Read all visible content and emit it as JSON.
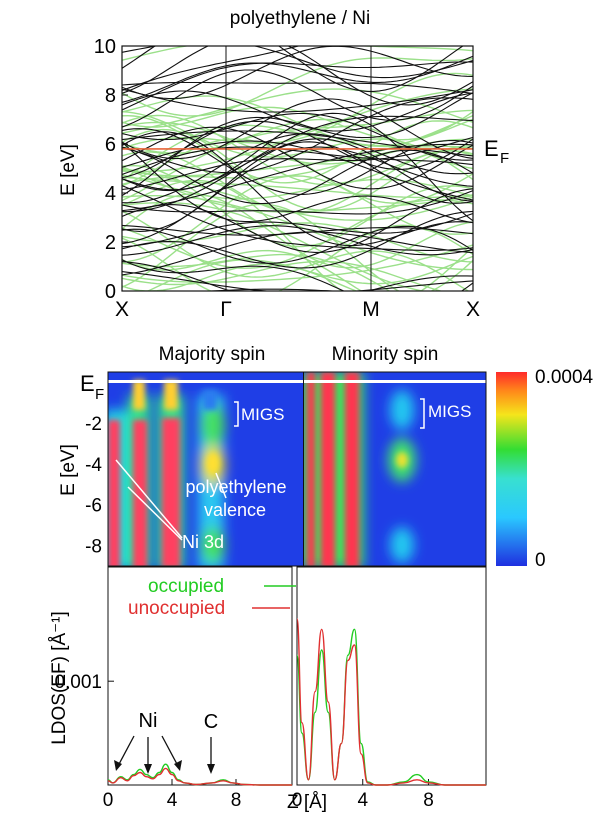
{
  "figure": {
    "top_title": "polyethylene / Ni",
    "majority_title": "Majority spin",
    "minority_title": "Minority spin",
    "fermi_label": "E",
    "fermi_sub": "F",
    "colorbar_max": "0.0004",
    "colorbar_min": "0",
    "annotations": {
      "migs_left": "MIGS",
      "migs_right": "MIGS",
      "poly_line1": "polyethylene",
      "poly_line2": "valence",
      "ni3d": "Ni 3d",
      "ni_peaks": "Ni",
      "c_peak": "C"
    },
    "colors": {
      "band_black": "#111111",
      "band_green": "#9be08a",
      "fermi_line": "#e8653a",
      "occupied": "#22cc22",
      "unoccupied": "#e03030",
      "map_background": "#1f3ee6"
    }
  },
  "chart_data": [
    {
      "type": "line",
      "title": "polyethylene / Ni",
      "ylabel": "E [eV]",
      "xlabel": "",
      "ylim": [
        0,
        10
      ],
      "yticks": [
        "0",
        "2",
        "4",
        "6",
        "8",
        "10"
      ],
      "xticks": [
        "X",
        "Γ",
        "M",
        "X"
      ],
      "fermi_level_eV": 5.8,
      "series": [
        {
          "name": "",
          "color": "black"
        },
        {
          "name": "",
          "color": "light green"
        }
      ]
    },
    {
      "type": "heatmap",
      "panels": [
        "Majority spin",
        "Minority spin"
      ],
      "ylabel": "E [eV]",
      "ylim": [
        -9,
        0.5
      ],
      "yticks": [
        "-2",
        "-4",
        "-6",
        "-8"
      ],
      "colorbar_range": [
        0,
        0.0004
      ],
      "colorbar_ticks": [
        "0.0004",
        "0"
      ]
    },
    {
      "type": "line",
      "ylabel": "LDOS(E_F) [Å^-1]",
      "xlabel": "Z [Å]",
      "yticks": [
        "0.001"
      ],
      "xticks": [
        "0",
        "4",
        "8"
      ],
      "xlim": [
        0,
        11.5
      ],
      "panels": [
        {
          "series": [
            {
              "name": "occupied",
              "x": [
                0,
                0.3,
                0.8,
                1.2,
                1.6,
                2.0,
                2.4,
                2.8,
                3.2,
                3.6,
                4.0,
                4.4,
                4.8,
                5.5,
                6.5,
                7.2,
                7.8,
                8.5,
                9.5,
                11.5
              ],
              "y": [
                5e-05,
                2e-05,
                8e-05,
                5e-05,
                0.0001,
                0.00015,
                0.0001,
                7e-05,
                0.00012,
                0.0002,
                0.00012,
                5e-05,
                2e-05,
                5e-06,
                2e-05,
                5e-05,
                2e-05,
                5e-06,
                0.0,
                0.0
              ]
            },
            {
              "name": "unoccupied",
              "x": [
                0,
                0.3,
                0.8,
                1.2,
                1.6,
                2.0,
                2.4,
                2.8,
                3.2,
                3.6,
                4.0,
                4.4,
                4.8,
                5.5,
                6.5,
                7.2,
                7.8,
                8.5,
                9.5,
                11.5
              ],
              "y": [
                4e-05,
                2e-05,
                7e-05,
                4e-05,
                9e-05,
                0.00012,
                8e-05,
                6e-05,
                0.0001,
                0.00016,
                0.0001,
                4e-05,
                2e-05,
                5e-06,
                2e-05,
                4e-05,
                2e-05,
                5e-06,
                0.0,
                0.0
              ]
            }
          ]
        },
        {
          "series": [
            {
              "name": "occupied",
              "x": [
                0,
                0.3,
                0.7,
                1.1,
                1.5,
                1.9,
                2.3,
                2.7,
                3.1,
                3.5,
                3.9,
                4.3,
                4.8,
                5.5,
                6.5,
                7.3,
                8.0,
                9.0,
                11.5
              ],
              "y": [
                0.00125,
                0.0005,
                5e-05,
                0.0007,
                0.0013,
                0.0007,
                5e-05,
                0.0004,
                0.00125,
                0.0015,
                0.0004,
                3e-05,
                0.0,
                0.0,
                3e-05,
                0.0001,
                3e-05,
                0.0,
                0.0
              ]
            },
            {
              "name": "unoccupied",
              "x": [
                0,
                0.3,
                0.7,
                1.1,
                1.5,
                1.9,
                2.3,
                2.7,
                3.1,
                3.5,
                3.9,
                4.3,
                4.8,
                5.5,
                6.5,
                7.3,
                8.0,
                9.0,
                11.5
              ],
              "y": [
                0.0016,
                0.0006,
                5e-05,
                0.0009,
                0.0015,
                0.0008,
                5e-05,
                0.0004,
                0.0012,
                0.00135,
                0.0003,
                2e-05,
                0.0,
                0.0,
                2e-05,
                5e-05,
                2e-05,
                0.0,
                0.0
              ]
            }
          ]
        }
      ]
    }
  ]
}
